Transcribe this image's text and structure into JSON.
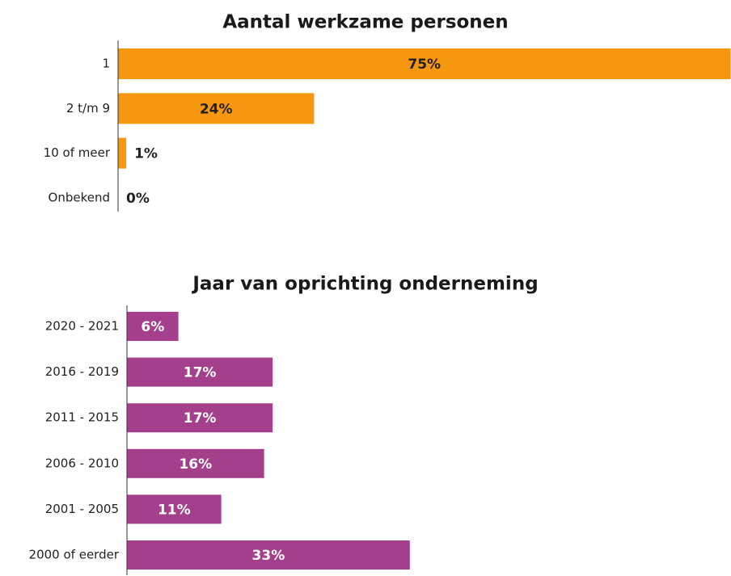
{
  "chart_data": [
    {
      "type": "hbar",
      "title": "Aantal werkzame personen",
      "categories": [
        "1",
        "2 t/m 9",
        "10 of meer",
        "Onbekend"
      ],
      "values": [
        75,
        24,
        1,
        0
      ],
      "value_labels": [
        "75%",
        "24%",
        "1%",
        "0%"
      ],
      "color": "#f7960f",
      "label_color": "#222222"
    },
    {
      "type": "hbar",
      "title": "Jaar van oprichting onderneming",
      "categories": [
        "2020 - 2021",
        "2016 - 2019",
        "2011 - 2015",
        "2006 - 2010",
        "2001 - 2005",
        "2000 of eerder"
      ],
      "values": [
        6,
        17,
        17,
        16,
        11,
        33
      ],
      "value_labels": [
        "6%",
        "17%",
        "17%",
        "16%",
        "11%",
        "33%"
      ],
      "color": "#a4408b",
      "label_color": "#ffffff"
    }
  ]
}
